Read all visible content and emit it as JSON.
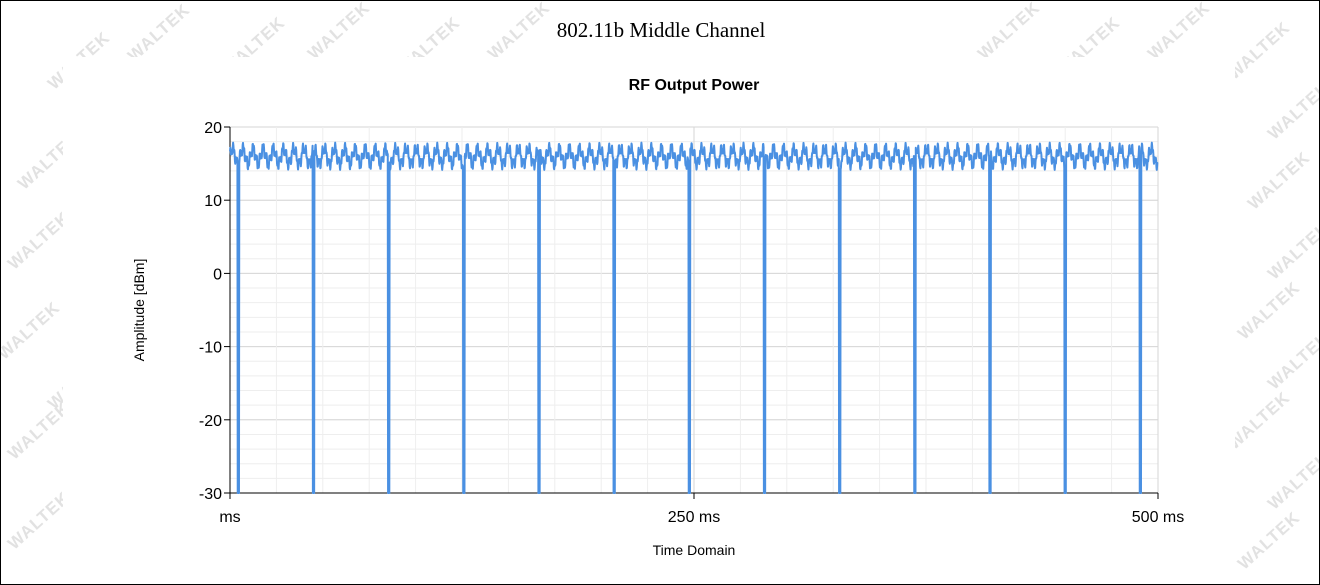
{
  "page": {
    "title": "802.11b Middle Channel",
    "watermark": "WALTEK"
  },
  "chart_data": {
    "type": "line",
    "title": "RF Output Power",
    "xlabel": "Time Domain",
    "ylabel": "Amplitude [dBm]",
    "xlim": [
      0,
      500
    ],
    "ylim": [
      -30,
      20
    ],
    "x_ticks": [
      {
        "value": 0,
        "label": "ms"
      },
      {
        "value": 250,
        "label": "250 ms"
      },
      {
        "value": 500,
        "label": "500 ms"
      }
    ],
    "y_ticks": [
      20,
      10,
      0,
      -10,
      -20,
      -30
    ],
    "grid": true,
    "line_color": "#4a90e2",
    "series": [
      {
        "waveform": {
          "baseline_dbm": 16,
          "ripple_dbm": 1.8,
          "burst_period_ms": 5.5,
          "dropout_period_ms": 40.5,
          "first_dropout_ms": 4.5,
          "dropout_level_dbm": -30
        }
      }
    ]
  }
}
